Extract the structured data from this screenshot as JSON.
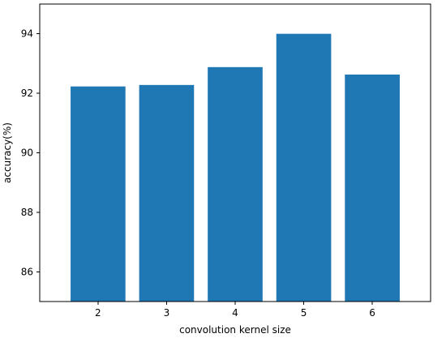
{
  "chart_data": {
    "type": "bar",
    "categories": [
      "2",
      "3",
      "4",
      "5",
      "6"
    ],
    "values": [
      92.23,
      92.28,
      92.88,
      94.0,
      92.63
    ],
    "xlabel": "convolution kernel size",
    "ylabel": "accuracy(%)",
    "ylim": [
      85.0,
      95.0
    ],
    "yticks": [
      "86",
      "88",
      "90",
      "92",
      "94"
    ],
    "grid": false,
    "bar_color": "#1f77b4"
  }
}
